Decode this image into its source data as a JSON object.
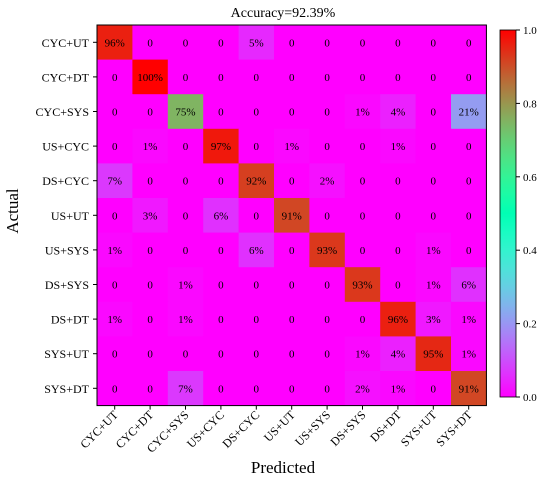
{
  "chart_data": {
    "type": "heatmap",
    "title": "Accuracy=92.39%",
    "xlabel": "Predicted",
    "ylabel": "Actual",
    "categories": [
      "CYC+UT",
      "CYC+DT",
      "CYC+SYS",
      "US+CYC",
      "DS+CYC",
      "US+UT",
      "US+SYS",
      "DS+SYS",
      "DS+DT",
      "SYS+UT",
      "SYS+DT"
    ],
    "matrix": [
      [
        "96%",
        "0",
        "0",
        "0",
        "5%",
        "0",
        "0",
        "0",
        "0",
        "0",
        "0"
      ],
      [
        "0",
        "100%",
        "0",
        "0",
        "0",
        "0",
        "0",
        "0",
        "0",
        "0",
        "0"
      ],
      [
        "0",
        "0",
        "75%",
        "0",
        "0",
        "0",
        "0",
        "1%",
        "4%",
        "0",
        "21%"
      ],
      [
        "0",
        "1%",
        "0",
        "97%",
        "0",
        "1%",
        "0",
        "0",
        "1%",
        "0",
        "0"
      ],
      [
        "7%",
        "0",
        "0",
        "0",
        "92%",
        "0",
        "2%",
        "0",
        "0",
        "0",
        "0"
      ],
      [
        "0",
        "3%",
        "0",
        "6%",
        "0",
        "91%",
        "0",
        "0",
        "0",
        "0",
        "0"
      ],
      [
        "1%",
        "0",
        "0",
        "0",
        "6%",
        "0",
        "93%",
        "0",
        "0",
        "1%",
        "0"
      ],
      [
        "0",
        "0",
        "1%",
        "0",
        "0",
        "0",
        "0",
        "93%",
        "0",
        "1%",
        "6%"
      ],
      [
        "1%",
        "0",
        "1%",
        "0",
        "0",
        "0",
        "0",
        "0",
        "96%",
        "3%",
        "1%"
      ],
      [
        "0",
        "0",
        "0",
        "0",
        "0",
        "0",
        "0",
        "1%",
        "4%",
        "95%",
        "1%"
      ],
      [
        "0",
        "0",
        "7%",
        "0",
        "0",
        "0",
        "0",
        "2%",
        "1%",
        "0",
        "91%"
      ]
    ],
    "colorbar": {
      "range": [
        0.0,
        1.0
      ],
      "ticks": [
        "0.0",
        "0.2",
        "0.4",
        "0.6",
        "0.8",
        "1.0"
      ],
      "colormap": "rainbow"
    },
    "colors": {
      "low": "#8000ff",
      "high": "#ff0000"
    }
  }
}
